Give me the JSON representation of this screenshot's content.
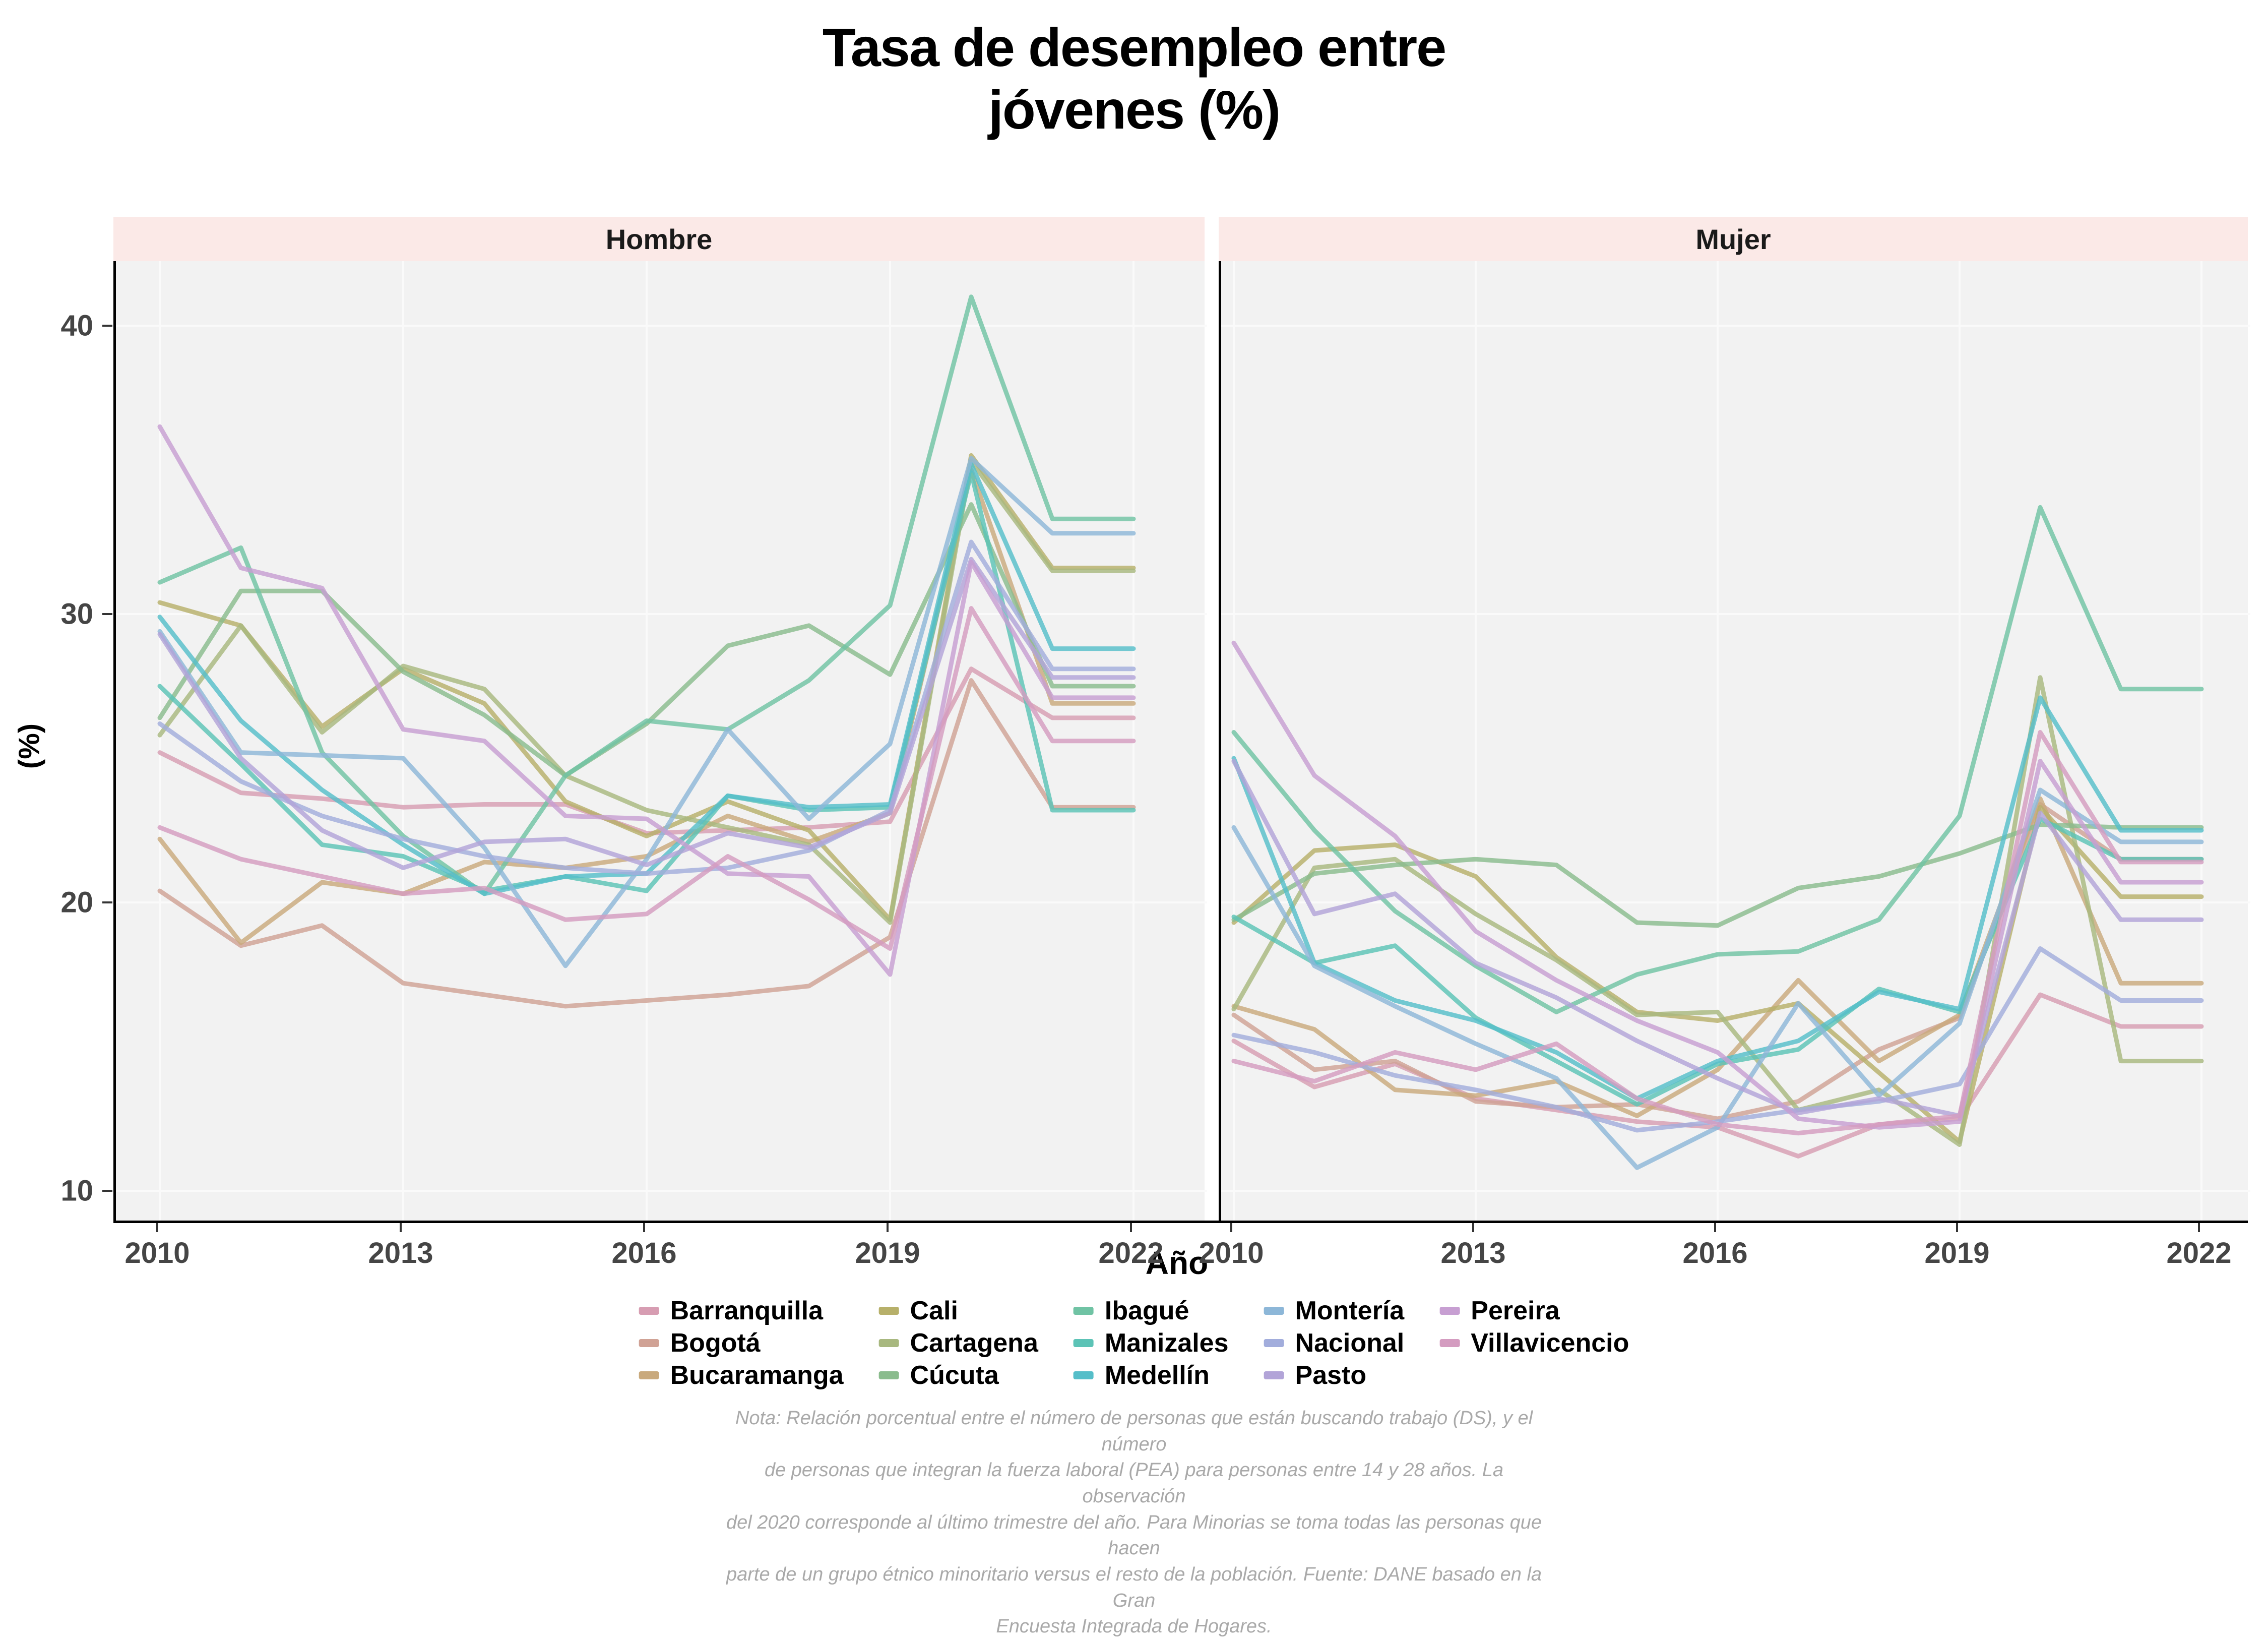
{
  "title": {
    "line1": "Tasa de desempleo entre",
    "line2": "jóvenes (%)"
  },
  "axis": {
    "x_title": "Año",
    "y_title": "(%)"
  },
  "facet_labels": [
    "Hombre",
    "Mujer"
  ],
  "colors": {
    "strip_bg": "#fbe9e7",
    "panel_bg": "#f2f2f2",
    "gridline": "#fafafa",
    "axis_text": "#454545",
    "note_text": "#a9a9a9"
  },
  "note_lines": [
    "Nota: Relación porcentual entre el número de personas que están buscando trabajo (DS), y el número",
    "de personas que integran la fuerza laboral (PEA) para personas entre 14 y 28 años. La observación",
    "del 2020 corresponde al último trimestre del año. Para Minorias se toma todas las personas que hacen",
    "parte de un grupo étnico minoritario versus el resto de la población. Fuente: DANE basado en la Gran",
    "Encuesta Integrada de Hogares."
  ],
  "chart_data": {
    "type": "line",
    "title": "Tasa de desempleo entre jóvenes (%)",
    "xlabel": "Año",
    "ylabel": "(%)",
    "legend_position": "bottom",
    "grid": true,
    "x": [
      2010,
      2011,
      2012,
      2013,
      2014,
      2015,
      2016,
      2017,
      2018,
      2019,
      2020,
      2021,
      2022
    ],
    "x_ticks": [
      2010,
      2013,
      2016,
      2019,
      2022
    ],
    "y_ticks": [
      10,
      20,
      30,
      40
    ],
    "ylim": [
      8.9,
      42.2
    ],
    "facets": [
      {
        "name": "Hombre",
        "series": [
          {
            "name": "Barranquilla",
            "color": "#d79db2",
            "values": [
              25.2,
              23.8,
              23.6,
              23.3,
              23.4,
              23.4,
              22.4,
              22.5,
              22.6,
              22.8,
              28.1,
              26.4,
              26.4
            ]
          },
          {
            "name": "Bogotá",
            "color": "#d0a295",
            "values": [
              20.4,
              18.5,
              19.2,
              17.2,
              16.8,
              16.4,
              16.6,
              16.8,
              17.1,
              18.8,
              27.7,
              23.3,
              23.3
            ]
          },
          {
            "name": "Bucaramanga",
            "color": "#c9a97c",
            "values": [
              22.2,
              18.6,
              20.7,
              20.3,
              21.4,
              21.2,
              21.6,
              23.0,
              22.1,
              23.1,
              35.0,
              26.9,
              26.9
            ]
          },
          {
            "name": "Cali",
            "color": "#b7b06a",
            "values": [
              30.4,
              29.6,
              26.1,
              28.1,
              26.9,
              23.5,
              22.3,
              23.5,
              22.5,
              19.4,
              35.5,
              31.6,
              31.6
            ]
          },
          {
            "name": "Cartagena",
            "color": "#a8b87f",
            "values": [
              25.8,
              29.6,
              25.9,
              28.2,
              27.4,
              24.4,
              23.2,
              22.6,
              22.0,
              19.3,
              35.3,
              31.5,
              31.5
            ]
          },
          {
            "name": "Cúcuta",
            "color": "#8abc8d",
            "values": [
              26.4,
              30.8,
              30.8,
              28.0,
              26.5,
              24.4,
              26.2,
              28.9,
              29.6,
              27.9,
              33.8,
              27.5,
              27.5
            ]
          },
          {
            "name": "Ibagué",
            "color": "#70c3a4",
            "values": [
              31.1,
              32.3,
              25.2,
              22.3,
              20.3,
              24.4,
              26.3,
              26.0,
              27.7,
              30.3,
              41.0,
              33.3,
              33.3
            ]
          },
          {
            "name": "Manizales",
            "color": "#5cc3b6",
            "values": [
              27.5,
              24.8,
              22.0,
              21.6,
              20.4,
              20.9,
              20.4,
              23.7,
              23.2,
              23.3,
              34.9,
              23.2,
              23.2
            ]
          },
          {
            "name": "Medellín",
            "color": "#55bec9",
            "values": [
              29.9,
              26.3,
              23.9,
              22.0,
              20.3,
              20.9,
              21.0,
              23.7,
              23.3,
              23.4,
              35.2,
              28.8,
              28.8
            ]
          },
          {
            "name": "Montería",
            "color": "#8db7d8",
            "values": [
              29.4,
              25.2,
              25.1,
              25.0,
              21.9,
              17.8,
              21.5,
              26.0,
              22.9,
              25.5,
              35.4,
              32.8,
              32.8
            ]
          },
          {
            "name": "Nacional",
            "color": "#a2addc",
            "values": [
              26.2,
              24.2,
              23.0,
              22.2,
              21.6,
              21.2,
              21.0,
              21.2,
              21.8,
              23.2,
              32.5,
              28.1,
              28.1
            ]
          },
          {
            "name": "Pasto",
            "color": "#b2a4d8",
            "values": [
              29.3,
              25.0,
              22.5,
              21.2,
              22.1,
              22.2,
              21.3,
              22.4,
              21.9,
              23.1,
              31.9,
              27.8,
              27.8
            ]
          },
          {
            "name": "Pereira",
            "color": "#c79fd2",
            "values": [
              36.5,
              31.6,
              30.9,
              26.0,
              25.6,
              23.0,
              22.9,
              21.0,
              20.9,
              17.5,
              31.8,
              27.1,
              27.1
            ]
          },
          {
            "name": "Villavicencio",
            "color": "#d49cc0",
            "values": [
              22.6,
              21.5,
              20.9,
              20.3,
              20.5,
              19.4,
              19.6,
              21.6,
              20.1,
              18.4,
              30.2,
              25.6,
              25.6
            ]
          }
        ]
      },
      {
        "name": "Mujer",
        "series": [
          {
            "name": "Barranquilla",
            "color": "#d79db2",
            "values": [
              15.2,
              13.6,
              14.4,
              13.2,
              12.8,
              12.4,
              12.2,
              11.2,
              12.3,
              12.5,
              16.8,
              15.7,
              15.7
            ]
          },
          {
            "name": "Bogotá",
            "color": "#d0a295",
            "values": [
              16.1,
              14.2,
              14.5,
              13.1,
              12.9,
              13.0,
              12.5,
              13.1,
              14.9,
              16.0,
              23.4,
              21.5,
              21.5
            ]
          },
          {
            "name": "Bucaramanga",
            "color": "#c9a97c",
            "values": [
              16.4,
              15.6,
              13.5,
              13.3,
              13.8,
              12.6,
              14.2,
              17.3,
              14.5,
              16.1,
              23.6,
              17.2,
              17.2
            ]
          },
          {
            "name": "Cali",
            "color": "#b7b06a",
            "values": [
              19.3,
              21.8,
              22.0,
              20.9,
              18.1,
              16.2,
              15.9,
              16.5,
              14.1,
              11.7,
              23.3,
              20.2,
              20.2
            ]
          },
          {
            "name": "Cartagena",
            "color": "#a8b87f",
            "values": [
              16.3,
              21.2,
              21.5,
              19.6,
              18.0,
              16.1,
              16.2,
              12.8,
              13.5,
              11.6,
              27.8,
              14.5,
              14.5
            ]
          },
          {
            "name": "Cúcuta",
            "color": "#8abc8d",
            "values": [
              19.4,
              21.0,
              21.3,
              21.5,
              21.3,
              19.3,
              19.2,
              20.5,
              20.9,
              21.7,
              22.7,
              22.6,
              22.6
            ]
          },
          {
            "name": "Ibagué",
            "color": "#70c3a4",
            "values": [
              25.9,
              22.5,
              19.7,
              17.8,
              16.2,
              17.5,
              18.2,
              18.3,
              19.4,
              23.0,
              33.7,
              27.4,
              27.4
            ]
          },
          {
            "name": "Manizales",
            "color": "#5cc3b6",
            "values": [
              19.5,
              17.9,
              18.5,
              16.0,
              14.5,
              13.0,
              14.4,
              14.9,
              17.0,
              16.2,
              22.9,
              21.5,
              21.5
            ]
          },
          {
            "name": "Medellín",
            "color": "#55bec9",
            "values": [
              25.0,
              17.9,
              16.6,
              15.9,
              14.8,
              13.2,
              14.5,
              15.2,
              16.9,
              16.3,
              27.1,
              22.5,
              22.5
            ]
          },
          {
            "name": "Montería",
            "color": "#8db7d8",
            "values": [
              22.6,
              17.8,
              16.4,
              15.1,
              13.9,
              10.8,
              12.2,
              16.5,
              13.3,
              15.8,
              23.9,
              22.1,
              22.1
            ]
          },
          {
            "name": "Nacional",
            "color": "#a2addc",
            "values": [
              15.4,
              14.8,
              14.0,
              13.5,
              12.9,
              12.1,
              12.4,
              12.8,
              13.1,
              13.7,
              18.4,
              16.6,
              16.6
            ]
          },
          {
            "name": "Pasto",
            "color": "#b2a4d8",
            "values": [
              24.9,
              19.6,
              20.3,
              17.9,
              16.7,
              15.2,
              13.9,
              12.7,
              13.2,
              12.6,
              23.1,
              19.4,
              19.4
            ]
          },
          {
            "name": "Pereira",
            "color": "#c79fd2",
            "values": [
              29.0,
              24.4,
              22.3,
              19.0,
              17.3,
              15.9,
              14.8,
              12.5,
              12.2,
              12.4,
              24.9,
              20.7,
              20.7
            ]
          },
          {
            "name": "Villavicencio",
            "color": "#d49cc0",
            "values": [
              14.5,
              13.8,
              14.8,
              14.2,
              15.1,
              13.2,
              12.3,
              12.0,
              12.3,
              12.6,
              25.9,
              21.4,
              21.4
            ]
          }
        ]
      }
    ]
  }
}
